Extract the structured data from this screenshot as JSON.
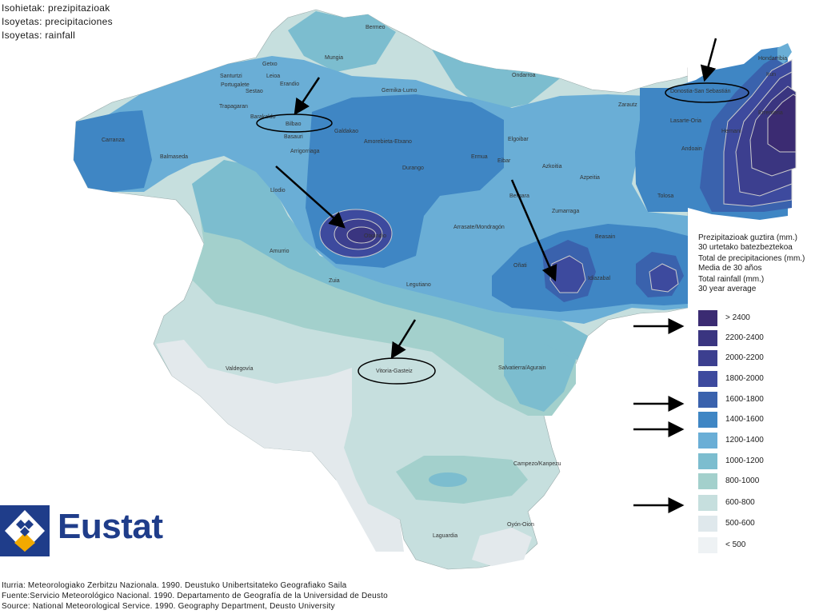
{
  "title_lines": [
    "Isohietak: prezipitazioak",
    "Isoyetas: precipitaciones",
    "Isoyetas: rainfall"
  ],
  "places": {
    "bermeo": "Bermeo",
    "mungia": "Mungia",
    "getxo": "Getxo",
    "leioa": "Leioa",
    "santurtzi": "Santurtzi",
    "portugalete": "Portugalete",
    "erandio": "Erandio",
    "sestao": "Sestao",
    "gernika": "Gernika-Lumo",
    "ondarroa": "Ondarroa",
    "trapagaran": "Trapagaran",
    "barakaldo": "Barakaldo",
    "bilbao": "Bilbao",
    "galdakao": "Galdakao",
    "amorebieta": "Amorebieta-Etxano",
    "basauri": "Basauri",
    "arrigorriaga": "Arrigorriaga",
    "carranza": "Carranza",
    "balmaseda": "Balmaseda",
    "durango": "Durango",
    "ermua": "Ermua",
    "eibar": "Eibar",
    "elgoibar": "Elgoibar",
    "zarautz": "Zarautz",
    "donostia": "Donostia-San Sebastián",
    "hondarribia": "Hondarribia",
    "irun": "Irun",
    "errenteria": "Errenteria",
    "lasarte": "Lasarte-Oria",
    "hernani": "Hernani",
    "andoain": "Andoain",
    "azkoitia": "Azkoitia",
    "azpeitia": "Azpeitia",
    "tolosa": "Tolosa",
    "llodio": "Llodio",
    "otxandio": "Otxandio",
    "bergara": "Bergara",
    "zumarraga": "Zumarraga",
    "arrasate": "Arrasate/Mondragón",
    "amurrio": "Amurrio",
    "beasain": "Beasain",
    "onati": "Oñati",
    "idiazabal": "Idiazabal",
    "zuia": "Zuia",
    "legutiano": "Legutiano",
    "valdegovia": "Valdegovía",
    "vitoria": "Vitoria-Gasteiz",
    "salvatierra": "Salvatierra/Agurain",
    "campezo": "Campezo/Kanpezu",
    "laguardia": "Laguardia",
    "oyon": "Oyón-Oion"
  },
  "legend": {
    "title_lines": [
      "Prezipitazioak guztira (mm.)",
      "30 urtetako batezbeztekoa",
      "Total de precipitaciones (mm.)",
      "Media de 30 años",
      "Total rainfall (mm.)",
      "30 year average"
    ],
    "items": [
      {
        "label": "> 2400",
        "color": "#3b2b72"
      },
      {
        "label": "2200-2400",
        "color": "#3a3580"
      },
      {
        "label": "2000-2200",
        "color": "#3c3f8f"
      },
      {
        "label": "1800-2000",
        "color": "#3d4a9e"
      },
      {
        "label": "1600-1800",
        "color": "#3a62ad"
      },
      {
        "label": "1400-1600",
        "color": "#3f86c4"
      },
      {
        "label": "1200-1400",
        "color": "#6aaed6"
      },
      {
        "label": "1000-1200",
        "color": "#7cbdcf"
      },
      {
        "label": "800-1000",
        "color": "#a3d0cc"
      },
      {
        "label": "600-800",
        "color": "#c6dfde"
      },
      {
        "label": "500-600",
        "color": "#dfe8ec"
      },
      {
        "label": "< 500",
        "color": "#eef2f4"
      }
    ]
  },
  "logo": {
    "text": "Eustat",
    "color": "#1f3d8a",
    "accent": "#f2a900"
  },
  "source_lines": [
    "Iturria: Meteorologiako Zerbitzu Nazionala. 1990. Deustuko Unibertsitateko Geografiako Saila",
    "Fuente:Servicio Meteorológico Nacional. 1990. Departamento de Geografía de la Universidad de Deusto",
    "Source: National Meteorological Service. 1990. Geography Department, Deusto University"
  ]
}
